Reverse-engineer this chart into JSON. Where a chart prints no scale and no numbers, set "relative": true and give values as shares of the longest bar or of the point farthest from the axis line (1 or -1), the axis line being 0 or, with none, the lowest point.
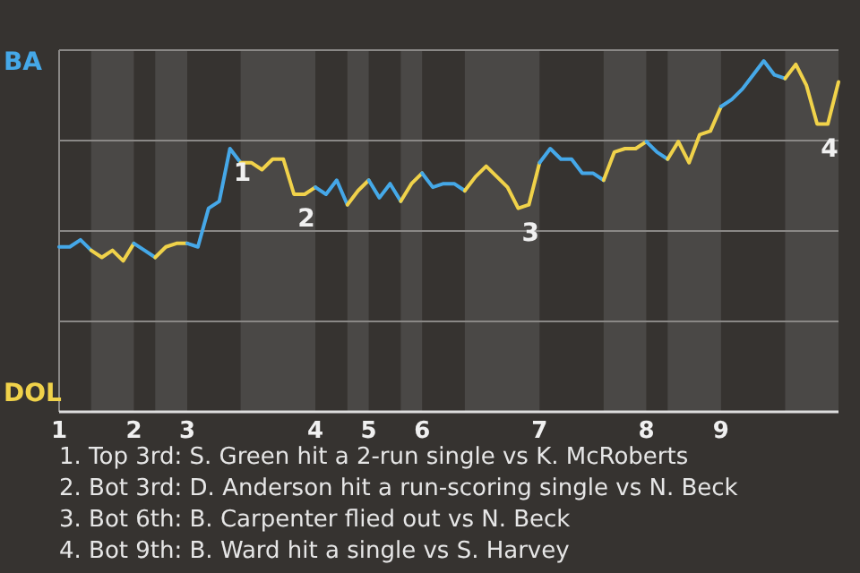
{
  "chart_data": {
    "type": "line",
    "relative": true,
    "grid": "y",
    "categories": [
      "1",
      null,
      null,
      null,
      null,
      null,
      null,
      "2",
      null,
      null,
      null,
      null,
      "3",
      null,
      null,
      null,
      null,
      null,
      null,
      null,
      null,
      null,
      null,
      null,
      "4",
      null,
      null,
      null,
      null,
      "5",
      null,
      null,
      null,
      null,
      "6",
      null,
      null,
      null,
      null,
      null,
      null,
      null,
      null,
      null,
      null,
      "7",
      null,
      null,
      null,
      null,
      null,
      null,
      null,
      null,
      null,
      "8",
      null,
      null,
      null,
      null,
      null,
      null,
      "9",
      null,
      null,
      null,
      null,
      null,
      null,
      null,
      null,
      null,
      null,
      null
    ],
    "series": [
      {
        "name": "BA",
        "color": "#45a8e8",
        "values": [
          0.47,
          0.47,
          0.49,
          0.46,
          null,
          null,
          null,
          null,
          null,
          null,
          null,
          null,
          null,
          null,
          null,
          null,
          null,
          null,
          null,
          null,
          null,
          null,
          null,
          null,
          null,
          null,
          null,
          null,
          null,
          null,
          null,
          null,
          null,
          null,
          null,
          null,
          null,
          null,
          null,
          null,
          null,
          null,
          null,
          null,
          null,
          null,
          null,
          null,
          null,
          null,
          null,
          null,
          null,
          null,
          null,
          null,
          null,
          null,
          null,
          null,
          null,
          null,
          null,
          null,
          null,
          null,
          null,
          null,
          null,
          null,
          null,
          null,
          null,
          null
        ]
      },
      {
        "name": "DOL",
        "color": "#f0d24a",
        "values": [
          null,
          null,
          null,
          0.46,
          0.44,
          0.46,
          0.43,
          0.48,
          null,
          null,
          null,
          null,
          null,
          null,
          null,
          null,
          null,
          null,
          null,
          null,
          null,
          null,
          null,
          null,
          null,
          null,
          null,
          null,
          null,
          null,
          null,
          null,
          null,
          null,
          null,
          null,
          null,
          null,
          null,
          null,
          null,
          null,
          null,
          null,
          null,
          null,
          null,
          null,
          null,
          null,
          null,
          null,
          null,
          null,
          null,
          null,
          null,
          null,
          null,
          null,
          null,
          null,
          null,
          null,
          null,
          null,
          null,
          null,
          null,
          null,
          null,
          null,
          null,
          null
        ]
      },
      {
        "color": "#44a8e8",
        "values": [
          null,
          null,
          null,
          null,
          null,
          null,
          null,
          0.48,
          0.46,
          0.44,
          null,
          null,
          null,
          null,
          null,
          null,
          null,
          null,
          null,
          null,
          null,
          null,
          null,
          null,
          null,
          null,
          null,
          null,
          null,
          null,
          null,
          null,
          null,
          null,
          null,
          null,
          null,
          null,
          null,
          null,
          null,
          null,
          null,
          null,
          null,
          null,
          null,
          null,
          null,
          null,
          null,
          null,
          null,
          null,
          null,
          null,
          null,
          null,
          null,
          null,
          null,
          null,
          null,
          null,
          null,
          null,
          null,
          null,
          null,
          null,
          null,
          null,
          null,
          null
        ]
      },
      {
        "color": "#efd24a",
        "values": [
          null,
          null,
          null,
          null,
          null,
          null,
          null,
          null,
          null,
          0.44,
          0.47,
          0.48,
          0.48,
          null,
          null,
          null,
          null,
          null,
          null,
          null,
          null,
          null,
          null,
          null,
          null,
          null,
          null,
          null,
          null,
          null,
          null,
          null,
          null,
          null,
          null,
          null,
          null,
          null,
          null,
          null,
          null,
          null,
          null,
          null,
          null,
          null,
          null,
          null,
          null,
          null,
          null,
          null,
          null,
          null,
          null,
          null,
          null,
          null,
          null,
          null,
          null,
          null,
          null,
          null,
          null,
          null,
          null,
          null,
          null,
          null,
          null,
          null,
          null,
          null
        ]
      },
      {
        "color": "#46a8e8",
        "values": [
          null,
          null,
          null,
          null,
          null,
          null,
          null,
          null,
          null,
          null,
          null,
          null,
          0.48,
          0.47,
          0.58,
          0.6,
          0.75,
          0.71,
          null,
          null,
          null,
          null,
          null,
          null,
          null,
          null,
          null,
          null,
          null,
          null,
          null,
          null,
          null,
          null,
          null,
          null,
          null,
          null,
          null,
          null,
          null,
          null,
          null,
          null,
          null,
          null,
          null,
          null,
          null,
          null,
          null,
          null,
          null,
          null,
          null,
          null,
          null,
          null,
          null,
          null,
          null,
          null,
          null,
          null,
          null,
          null,
          null,
          null,
          null,
          null,
          null,
          null,
          null,
          null
        ]
      },
      {
        "color": "#f1d24a",
        "values": [
          null,
          null,
          null,
          null,
          null,
          null,
          null,
          null,
          null,
          null,
          null,
          null,
          null,
          null,
          null,
          null,
          null,
          0.71,
          0.71,
          0.69,
          0.72,
          0.72,
          0.62,
          0.62,
          0.64,
          null,
          null,
          null,
          null,
          null,
          null,
          null,
          null,
          null,
          null,
          null,
          null,
          null,
          null,
          null,
          null,
          null,
          null,
          null,
          null,
          null,
          null,
          null,
          null,
          null,
          null,
          null,
          null,
          null,
          null,
          null,
          null,
          null,
          null,
          null,
          null,
          null,
          null,
          null,
          null,
          null,
          null,
          null,
          null,
          null,
          null,
          null,
          null,
          null
        ]
      },
      {
        "color": "#45a7e8",
        "values": [
          null,
          null,
          null,
          null,
          null,
          null,
          null,
          null,
          null,
          null,
          null,
          null,
          null,
          null,
          null,
          null,
          null,
          null,
          null,
          null,
          null,
          null,
          null,
          null,
          0.64,
          0.62,
          0.66,
          0.59,
          null,
          null,
          null,
          null,
          null,
          null,
          null,
          null,
          null,
          null,
          null,
          null,
          null,
          null,
          null,
          null,
          null,
          null,
          null,
          null,
          null,
          null,
          null,
          null,
          null,
          null,
          null,
          null,
          null,
          null,
          null,
          null,
          null,
          null,
          null,
          null,
          null,
          null,
          null,
          null,
          null,
          null,
          null,
          null,
          null,
          null
        ]
      },
      {
        "color": "#f0d14a",
        "values": [
          null,
          null,
          null,
          null,
          null,
          null,
          null,
          null,
          null,
          null,
          null,
          null,
          null,
          null,
          null,
          null,
          null,
          null,
          null,
          null,
          null,
          null,
          null,
          null,
          null,
          null,
          null,
          0.59,
          0.63,
          0.66,
          null,
          null,
          null,
          null,
          null,
          null,
          null,
          null,
          null,
          null,
          null,
          null,
          null,
          null,
          null,
          null,
          null,
          null,
          null,
          null,
          null,
          null,
          null,
          null,
          null,
          null,
          null,
          null,
          null,
          null,
          null,
          null,
          null,
          null,
          null,
          null,
          null,
          null,
          null,
          null,
          null,
          null,
          null,
          null
        ]
      },
      {
        "color": "#45a9e8",
        "values": [
          null,
          null,
          null,
          null,
          null,
          null,
          null,
          null,
          null,
          null,
          null,
          null,
          null,
          null,
          null,
          null,
          null,
          null,
          null,
          null,
          null,
          null,
          null,
          null,
          null,
          null,
          null,
          null,
          null,
          0.66,
          0.61,
          0.65,
          0.6,
          null,
          null,
          null,
          null,
          null,
          null,
          null,
          null,
          null,
          null,
          null,
          null,
          null,
          null,
          null,
          null,
          null,
          null,
          null,
          null,
          null,
          null,
          null,
          null,
          null,
          null,
          null,
          null,
          null,
          null,
          null,
          null,
          null,
          null,
          null,
          null,
          null,
          null,
          null,
          null,
          null
        ]
      },
      {
        "color": "#f0d34a",
        "values": [
          null,
          null,
          null,
          null,
          null,
          null,
          null,
          null,
          null,
          null,
          null,
          null,
          null,
          null,
          null,
          null,
          null,
          null,
          null,
          null,
          null,
          null,
          null,
          null,
          null,
          null,
          null,
          null,
          null,
          null,
          null,
          null,
          0.6,
          0.65,
          0.68,
          null,
          null,
          null,
          null,
          null,
          null,
          null,
          null,
          null,
          null,
          null,
          null,
          null,
          null,
          null,
          null,
          null,
          null,
          null,
          null,
          null,
          null,
          null,
          null,
          null,
          null,
          null,
          null,
          null,
          null,
          null,
          null,
          null,
          null,
          null,
          null,
          null,
          null,
          null
        ]
      },
      {
        "color": "#45a8e7",
        "values": [
          null,
          null,
          null,
          null,
          null,
          null,
          null,
          null,
          null,
          null,
          null,
          null,
          null,
          null,
          null,
          null,
          null,
          null,
          null,
          null,
          null,
          null,
          null,
          null,
          null,
          null,
          null,
          null,
          null,
          null,
          null,
          null,
          null,
          null,
          0.68,
          0.64,
          0.65,
          0.65,
          0.63,
          null,
          null,
          null,
          null,
          null,
          null,
          null,
          null,
          null,
          null,
          null,
          null,
          null,
          null,
          null,
          null,
          null,
          null,
          null,
          null,
          null,
          null,
          null,
          null,
          null,
          null,
          null,
          null,
          null,
          null,
          null,
          null,
          null,
          null,
          null
        ]
      },
      {
        "color": "#f0d249",
        "values": [
          null,
          null,
          null,
          null,
          null,
          null,
          null,
          null,
          null,
          null,
          null,
          null,
          null,
          null,
          null,
          null,
          null,
          null,
          null,
          null,
          null,
          null,
          null,
          null,
          null,
          null,
          null,
          null,
          null,
          null,
          null,
          null,
          null,
          null,
          null,
          null,
          null,
          null,
          0.63,
          0.67,
          0.7,
          0.67,
          0.64,
          0.58,
          0.59,
          0.71,
          null,
          null,
          null,
          null,
          null,
          null,
          null,
          null,
          null,
          null,
          null,
          null,
          null,
          null,
          null,
          null,
          null,
          null,
          null,
          null,
          null,
          null,
          null,
          null,
          null,
          null,
          null,
          null
        ]
      },
      {
        "color": "#45a8e9",
        "values": [
          null,
          null,
          null,
          null,
          null,
          null,
          null,
          null,
          null,
          null,
          null,
          null,
          null,
          null,
          null,
          null,
          null,
          null,
          null,
          null,
          null,
          null,
          null,
          null,
          null,
          null,
          null,
          null,
          null,
          null,
          null,
          null,
          null,
          null,
          null,
          null,
          null,
          null,
          null,
          null,
          null,
          null,
          null,
          null,
          null,
          0.71,
          0.75,
          0.72,
          0.72,
          0.68,
          0.68,
          0.66,
          null,
          null,
          null,
          null,
          null,
          null,
          null,
          null,
          null,
          null,
          null,
          null,
          null,
          null,
          null,
          null,
          null,
          null,
          null,
          null,
          null,
          null
        ]
      },
      {
        "color": "#f0d24b",
        "values": [
          null,
          null,
          null,
          null,
          null,
          null,
          null,
          null,
          null,
          null,
          null,
          null,
          null,
          null,
          null,
          null,
          null,
          null,
          null,
          null,
          null,
          null,
          null,
          null,
          null,
          null,
          null,
          null,
          null,
          null,
          null,
          null,
          null,
          null,
          null,
          null,
          null,
          null,
          null,
          null,
          null,
          null,
          null,
          null,
          null,
          null,
          null,
          null,
          null,
          null,
          null,
          0.66,
          0.74,
          0.75,
          0.75,
          0.77,
          null,
          null,
          null,
          null,
          null,
          null,
          null,
          null,
          null,
          null,
          null,
          null,
          null,
          null,
          null,
          null,
          null,
          null
        ]
      },
      {
        "color": "#44a7e8",
        "values": [
          null,
          null,
          null,
          null,
          null,
          null,
          null,
          null,
          null,
          null,
          null,
          null,
          null,
          null,
          null,
          null,
          null,
          null,
          null,
          null,
          null,
          null,
          null,
          null,
          null,
          null,
          null,
          null,
          null,
          null,
          null,
          null,
          null,
          null,
          null,
          null,
          null,
          null,
          null,
          null,
          null,
          null,
          null,
          null,
          null,
          null,
          null,
          null,
          null,
          null,
          null,
          null,
          null,
          null,
          null,
          0.77,
          0.74,
          0.72,
          null,
          null,
          null,
          null,
          null,
          null,
          null,
          null,
          null,
          null,
          null,
          null,
          null,
          null,
          null,
          null
        ]
      },
      {
        "color": "#efd14a",
        "values": [
          null,
          null,
          null,
          null,
          null,
          null,
          null,
          null,
          null,
          null,
          null,
          null,
          null,
          null,
          null,
          null,
          null,
          null,
          null,
          null,
          null,
          null,
          null,
          null,
          null,
          null,
          null,
          null,
          null,
          null,
          null,
          null,
          null,
          null,
          null,
          null,
          null,
          null,
          null,
          null,
          null,
          null,
          null,
          null,
          null,
          null,
          null,
          null,
          null,
          null,
          null,
          null,
          null,
          null,
          null,
          null,
          null,
          0.72,
          0.77,
          0.71,
          0.79,
          0.8,
          0.87,
          null,
          null,
          null,
          null,
          null,
          null,
          null,
          null,
          null,
          null,
          null
        ]
      },
      {
        "color": "#46a9e8",
        "values": [
          null,
          null,
          null,
          null,
          null,
          null,
          null,
          null,
          null,
          null,
          null,
          null,
          null,
          null,
          null,
          null,
          null,
          null,
          null,
          null,
          null,
          null,
          null,
          null,
          null,
          null,
          null,
          null,
          null,
          null,
          null,
          null,
          null,
          null,
          null,
          null,
          null,
          null,
          null,
          null,
          null,
          null,
          null,
          null,
          null,
          null,
          null,
          null,
          null,
          null,
          null,
          null,
          null,
          null,
          null,
          null,
          null,
          null,
          null,
          null,
          null,
          null,
          0.87,
          0.89,
          0.92,
          0.96,
          1,
          0.96,
          0.95,
          null,
          null,
          null,
          null,
          null
        ]
      },
      {
        "color": "#f1d34a",
        "values": [
          null,
          null,
          null,
          null,
          null,
          null,
          null,
          null,
          null,
          null,
          null,
          null,
          null,
          null,
          null,
          null,
          null,
          null,
          null,
          null,
          null,
          null,
          null,
          null,
          null,
          null,
          null,
          null,
          null,
          null,
          null,
          null,
          null,
          null,
          null,
          null,
          null,
          null,
          null,
          null,
          null,
          null,
          null,
          null,
          null,
          null,
          null,
          null,
          null,
          null,
          null,
          null,
          null,
          null,
          null,
          null,
          null,
          null,
          null,
          null,
          null,
          null,
          null,
          null,
          null,
          null,
          null,
          null,
          0.95,
          0.99,
          0.93,
          0.82,
          0.82,
          0.94
        ]
      }
    ],
    "annotations": [
      {
        "text": "1",
        "y": 0.75
      },
      {
        "text": "2",
        "y": 0.62
      },
      {
        "text": "3",
        "y": 0.58
      },
      {
        "text": "4",
        "y": 0.82
      },
      "1. Top 3rd: S. Green hit a 2-run single vs K. McRoberts",
      "2. Bot 3rd: D. Anderson hit a run-scoring single vs N. Beck",
      "3. Bot 6th: B. Carpenter flied out vs N. Beck",
      "4. Bot 9th: B. Ward hit a single vs S. Harvey"
    ]
  }
}
